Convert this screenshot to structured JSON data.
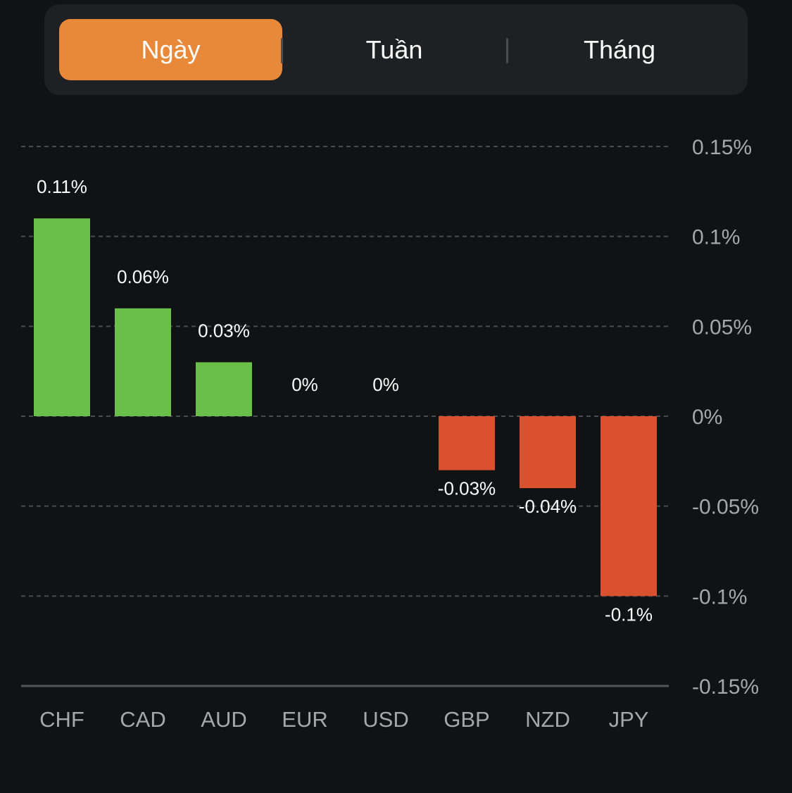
{
  "tabs": [
    {
      "label": "Ngày",
      "active": true
    },
    {
      "label": "Tuần",
      "active": false
    },
    {
      "label": "Tháng",
      "active": false
    }
  ],
  "colors": {
    "background": "#111214",
    "tabbar": "#1f2023",
    "active_tab": "#e8893a",
    "positive": "#6abf4b",
    "negative": "#d9512f",
    "grid": "#4a4b50",
    "axis_text": "#a6a7ac",
    "label_text": "#ffffff"
  },
  "chart_data": {
    "type": "bar",
    "categories": [
      "CHF",
      "CAD",
      "AUD",
      "EUR",
      "USD",
      "GBP",
      "NZD",
      "JPY"
    ],
    "values": [
      0.11,
      0.06,
      0.03,
      0,
      0,
      -0.03,
      -0.04,
      -0.1
    ],
    "value_labels": [
      "0.11%",
      "0.06%",
      "0.03%",
      "0%",
      "0%",
      "-0.03%",
      "-0.04%",
      "-0.1%"
    ],
    "y_ticks": [
      0.15,
      0.1,
      0.05,
      0,
      -0.05,
      -0.1,
      -0.15
    ],
    "y_tick_labels": [
      "0.15%",
      "0.1%",
      "0.05%",
      "0%",
      "-0.05%",
      "-0.1%",
      "-0.15%"
    ],
    "ylim": [
      -0.15,
      0.15
    ],
    "grid": true,
    "y_axis_position": "right"
  }
}
